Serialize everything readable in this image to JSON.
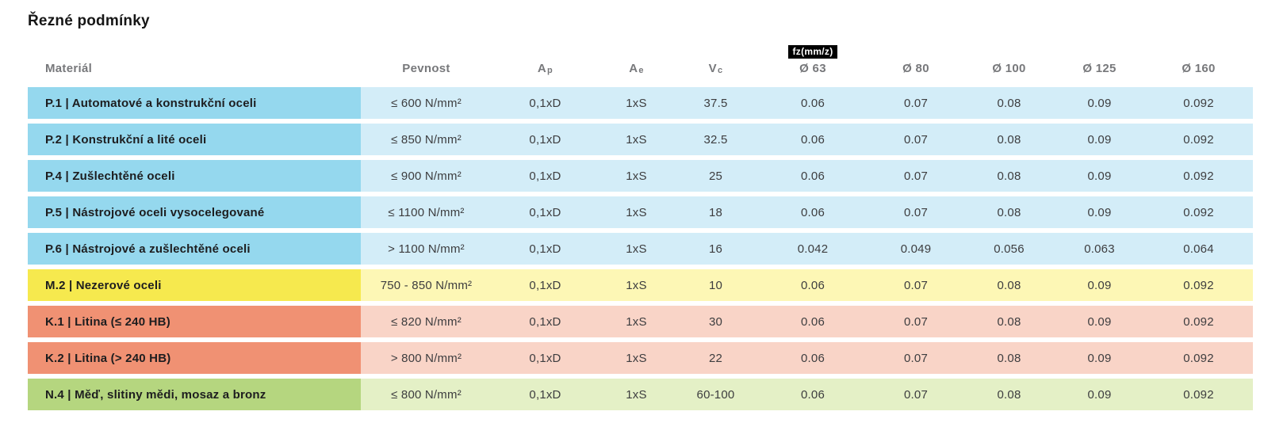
{
  "title": "Řezné podmínky",
  "table": {
    "headers": {
      "material": "Materiál",
      "pevnost": "Pevnost",
      "ap": {
        "base": "A",
        "sub": "p"
      },
      "ae": {
        "base": "A",
        "sub": "e"
      },
      "vc": {
        "base": "V",
        "sub": "c"
      },
      "fz_badge": "fz(mm/z)",
      "d63": "Ø 63",
      "d80": "Ø 80",
      "d100": "Ø 100",
      "d125": "Ø 125",
      "d160": "Ø 160"
    },
    "colors": {
      "steel": {
        "dark": "#95d8ee",
        "light": "#d3edf8"
      },
      "stainless": {
        "dark": "#f6e94e",
        "light": "#fdf7b5"
      },
      "cast_iron": {
        "dark": "#f09173",
        "light": "#f9d4c7"
      },
      "nonferrous": {
        "dark": "#b5d67f",
        "light": "#e4f0c6"
      }
    },
    "rows": [
      {
        "group": "steel",
        "material": "P.1 | Automatové a konstrukční oceli",
        "pevnost": "≤ 600 N/mm²",
        "ap": "0,1xD",
        "ae": "1xS",
        "vc": "37.5",
        "d63": "0.06",
        "d80": "0.07",
        "d100": "0.08",
        "d125": "0.09",
        "d160": "0.092"
      },
      {
        "group": "steel",
        "material": "P.2 | Konstrukční a lité oceli",
        "pevnost": "≤ 850 N/mm²",
        "ap": "0,1xD",
        "ae": "1xS",
        "vc": "32.5",
        "d63": "0.06",
        "d80": "0.07",
        "d100": "0.08",
        "d125": "0.09",
        "d160": "0.092"
      },
      {
        "group": "steel",
        "material": "P.4 | Zušlechtěné oceli",
        "pevnost": "≤ 900 N/mm²",
        "ap": "0,1xD",
        "ae": "1xS",
        "vc": "25",
        "d63": "0.06",
        "d80": "0.07",
        "d100": "0.08",
        "d125": "0.09",
        "d160": "0.092"
      },
      {
        "group": "steel",
        "material": "P.5 | Nástrojové oceli vysocelegované",
        "pevnost": "≤ 1100 N/mm²",
        "ap": "0,1xD",
        "ae": "1xS",
        "vc": "18",
        "d63": "0.06",
        "d80": "0.07",
        "d100": "0.08",
        "d125": "0.09",
        "d160": "0.092"
      },
      {
        "group": "steel",
        "material": "P.6 | Nástrojové a zušlechtěné oceli",
        "pevnost": "> 1100 N/mm²",
        "ap": "0,1xD",
        "ae": "1xS",
        "vc": "16",
        "d63": "0.042",
        "d80": "0.049",
        "d100": "0.056",
        "d125": "0.063",
        "d160": "0.064"
      },
      {
        "group": "stainless",
        "material": "M.2 | Nezerové oceli",
        "pevnost": "750 - 850 N/mm²",
        "ap": "0,1xD",
        "ae": "1xS",
        "vc": "10",
        "d63": "0.06",
        "d80": "0.07",
        "d100": "0.08",
        "d125": "0.09",
        "d160": "0.092"
      },
      {
        "group": "cast_iron",
        "material": "K.1 | Litina (≤ 240 HB)",
        "pevnost": "≤ 820 N/mm²",
        "ap": "0,1xD",
        "ae": "1xS",
        "vc": "30",
        "d63": "0.06",
        "d80": "0.07",
        "d100": "0.08",
        "d125": "0.09",
        "d160": "0.092"
      },
      {
        "group": "cast_iron",
        "material": "K.2 | Litina (> 240 HB)",
        "pevnost": "> 800 N/mm²",
        "ap": "0,1xD",
        "ae": "1xS",
        "vc": "22",
        "d63": "0.06",
        "d80": "0.07",
        "d100": "0.08",
        "d125": "0.09",
        "d160": "0.092"
      },
      {
        "group": "nonferrous",
        "material": "N.4 | Měď, slitiny mědi, mosaz a bronz",
        "pevnost": "≤ 800 N/mm²",
        "ap": "0,1xD",
        "ae": "1xS",
        "vc": "60-100",
        "d63": "0.06",
        "d80": "0.07",
        "d100": "0.08",
        "d125": "0.09",
        "d160": "0.092"
      }
    ]
  }
}
